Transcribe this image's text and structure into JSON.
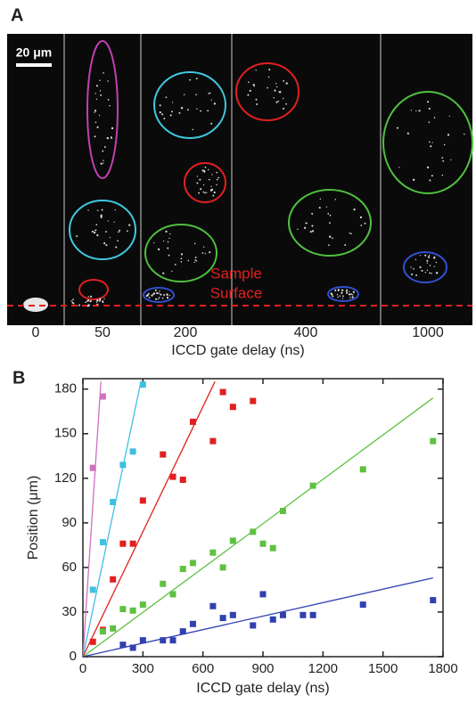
{
  "panel_a": {
    "label": "A",
    "scale_bar": "20 μm",
    "surface_label": [
      "Sample",
      "Surface"
    ],
    "delays": [
      "0",
      "50",
      "200",
      "400",
      "1000"
    ],
    "x_label": "ICCD gate delay (ns)"
  },
  "chart_data": {
    "type": "scatter",
    "panel_label": "B",
    "x_label": "ICCD gate delay (ns)",
    "y_label": "Position (μm)",
    "xlim": [
      0,
      1800
    ],
    "ylim": [
      0,
      187
    ],
    "xticks": [
      0,
      300,
      600,
      900,
      1200,
      1500,
      1800
    ],
    "yticks": [
      0,
      30,
      60,
      90,
      120,
      150,
      180
    ],
    "series": [
      {
        "color": "#d070c0",
        "x": [
          50,
          100
        ],
        "values": [
          127,
          175
        ],
        "line": {
          "x": [
            0,
            90
          ],
          "y": [
            0,
            185
          ]
        }
      },
      {
        "color": "#40c0e0",
        "x": [
          50,
          100,
          150,
          200,
          250,
          300
        ],
        "values": [
          45,
          77,
          104,
          129,
          138,
          183
        ],
        "line": {
          "x": [
            0,
            290
          ],
          "y": [
            0,
            185
          ]
        }
      },
      {
        "color": "#e02020",
        "x": [
          50,
          100,
          150,
          200,
          250,
          300,
          400,
          450,
          500,
          550,
          650,
          700,
          750,
          850
        ],
        "values": [
          10,
          18,
          52,
          76,
          76,
          105,
          136,
          121,
          119,
          158,
          145,
          178,
          168,
          172
        ],
        "line": {
          "x": [
            0,
            660
          ],
          "y": [
            0,
            185
          ]
        }
      },
      {
        "color": "#60c040",
        "x": [
          100,
          150,
          200,
          250,
          300,
          400,
          450,
          500,
          550,
          650,
          700,
          750,
          850,
          900,
          950,
          1000,
          1150,
          1400,
          1750
        ],
        "values": [
          17,
          19,
          32,
          31,
          35,
          49,
          42,
          59,
          63,
          70,
          60,
          78,
          84,
          76,
          73,
          98,
          115,
          126,
          145
        ],
        "line": {
          "x": [
            0,
            1750
          ],
          "y": [
            0,
            174
          ]
        }
      },
      {
        "color": "#3040b0",
        "x": [
          200,
          250,
          300,
          400,
          450,
          500,
          550,
          650,
          700,
          750,
          850,
          900,
          950,
          1000,
          1100,
          1150,
          1400,
          1750
        ],
        "values": [
          8,
          6,
          11,
          11,
          11,
          17,
          22,
          34,
          26,
          28,
          21,
          42,
          25,
          28,
          28,
          28,
          35,
          38
        ],
        "line": {
          "x": [
            0,
            1750
          ],
          "y": [
            0,
            53
          ]
        }
      }
    ]
  }
}
